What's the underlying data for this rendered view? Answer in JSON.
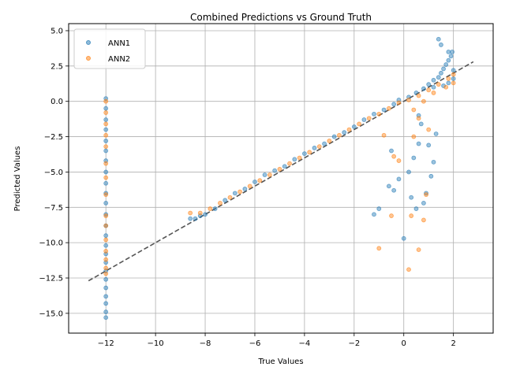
{
  "chart_data": {
    "type": "scatter",
    "title": "Combined Predictions vs Ground Truth",
    "xlabel": "True Values",
    "ylabel": "Predicted Values",
    "xlim": [
      -13.5,
      3.6
    ],
    "ylim": [
      -16.4,
      5.5
    ],
    "xticks": [
      -12,
      -10,
      -8,
      -6,
      -4,
      -2,
      0,
      2
    ],
    "yticks": [
      -15.0,
      -12.5,
      -10.0,
      -7.5,
      -5.0,
      -2.5,
      0.0,
      2.5,
      5.0
    ],
    "xtick_labels": [
      "−12",
      "−10",
      "−8",
      "−6",
      "−4",
      "−2",
      "0",
      "2"
    ],
    "ytick_labels": [
      "−15.0",
      "−12.5",
      "−10.0",
      "−7.5",
      "−5.0",
      "−2.5",
      "0.0",
      "2.5",
      "5.0"
    ],
    "grid": true,
    "legend_position": "top-left",
    "reference_line": {
      "style": "dashed",
      "color": "#555555",
      "x": [
        -12.7,
        2.8
      ],
      "y": [
        -12.7,
        2.8
      ]
    },
    "series": [
      {
        "name": "ANN1",
        "color": "#1f77b4",
        "points": [
          [
            -12,
            0.2
          ],
          [
            -12,
            -0.5
          ],
          [
            -12,
            -1.3
          ],
          [
            -12,
            -2.0
          ],
          [
            -12,
            -2.8
          ],
          [
            -12,
            -3.5
          ],
          [
            -12,
            -4.2
          ],
          [
            -12,
            -5.0
          ],
          [
            -12,
            -5.8
          ],
          [
            -12,
            -6.5
          ],
          [
            -12,
            -7.2
          ],
          [
            -12,
            -8.0
          ],
          [
            -12,
            -8.8
          ],
          [
            -12,
            -9.5
          ],
          [
            -12,
            -10.2
          ],
          [
            -12,
            -10.8
          ],
          [
            -12,
            -11.4
          ],
          [
            -12,
            -12.0
          ],
          [
            -12,
            -12.6
          ],
          [
            -12,
            -13.2
          ],
          [
            -12,
            -13.8
          ],
          [
            -12,
            -14.3
          ],
          [
            -12,
            -14.9
          ],
          [
            -12,
            -15.3
          ],
          [
            -8.6,
            -8.3
          ],
          [
            -8.4,
            -8.3
          ],
          [
            -8.2,
            -8.1
          ],
          [
            -8.0,
            -8.0
          ],
          [
            -7.6,
            -7.6
          ],
          [
            -7.2,
            -7.0
          ],
          [
            -6.8,
            -6.5
          ],
          [
            -6.4,
            -6.2
          ],
          [
            -6.0,
            -5.7
          ],
          [
            -5.6,
            -5.2
          ],
          [
            -5.2,
            -4.9
          ],
          [
            -4.8,
            -4.6
          ],
          [
            -4.4,
            -4.1
          ],
          [
            -4.0,
            -3.7
          ],
          [
            -3.6,
            -3.3
          ],
          [
            -3.2,
            -3.0
          ],
          [
            -2.8,
            -2.5
          ],
          [
            -2.4,
            -2.2
          ],
          [
            -2.0,
            -1.8
          ],
          [
            -1.6,
            -1.3
          ],
          [
            -1.2,
            -0.9
          ],
          [
            -0.8,
            -0.6
          ],
          [
            -0.4,
            -0.2
          ],
          [
            -0.2,
            0.1
          ],
          [
            0.2,
            0.3
          ],
          [
            0.5,
            0.6
          ],
          [
            0.8,
            0.9
          ],
          [
            1.0,
            1.2
          ],
          [
            1.2,
            1.5
          ],
          [
            1.4,
            1.7
          ],
          [
            1.5,
            2.0
          ],
          [
            1.6,
            2.3
          ],
          [
            1.7,
            2.6
          ],
          [
            1.8,
            2.9
          ],
          [
            1.9,
            3.2
          ],
          [
            1.95,
            3.5
          ],
          [
            2.0,
            2.2
          ],
          [
            2.0,
            1.6
          ],
          [
            1.8,
            1.3
          ],
          [
            1.4,
            4.4
          ],
          [
            1.5,
            4.0
          ],
          [
            1.8,
            3.5
          ],
          [
            1.2,
            1.0
          ],
          [
            1.6,
            1.1
          ],
          [
            0.0,
            -9.7
          ],
          [
            0.3,
            -6.8
          ],
          [
            0.5,
            -7.6
          ],
          [
            0.2,
            -5.0
          ],
          [
            0.4,
            -4.0
          ],
          [
            0.6,
            -3.0
          ],
          [
            0.8,
            -7.2
          ],
          [
            0.9,
            -6.5
          ],
          [
            1.1,
            -5.3
          ],
          [
            1.2,
            -4.3
          ],
          [
            1.0,
            -3.1
          ],
          [
            1.3,
            -2.3
          ],
          [
            -1.2,
            -8.0
          ],
          [
            -1.0,
            -7.6
          ],
          [
            -0.5,
            -3.5
          ],
          [
            -0.2,
            -5.5
          ],
          [
            0.7,
            -1.6
          ],
          [
            0.6,
            -1.0
          ],
          [
            -0.6,
            -6.0
          ],
          [
            -0.4,
            -6.3
          ]
        ]
      },
      {
        "name": "ANN2",
        "color": "#ff7f0e",
        "points": [
          [
            -12,
            0.0
          ],
          [
            -12,
            -0.8
          ],
          [
            -12,
            -1.6
          ],
          [
            -12,
            -2.4
          ],
          [
            -12,
            -3.2
          ],
          [
            -12,
            -4.4
          ],
          [
            -12,
            -5.4
          ],
          [
            -12,
            -6.6
          ],
          [
            -12,
            -8.1
          ],
          [
            -12,
            -8.8
          ],
          [
            -12,
            -9.8
          ],
          [
            -12,
            -10.6
          ],
          [
            -12,
            -11.2
          ],
          [
            -12,
            -11.8
          ],
          [
            -12,
            -12.2
          ],
          [
            -8.6,
            -7.9
          ],
          [
            -8.2,
            -7.9
          ],
          [
            -7.8,
            -7.6
          ],
          [
            -7.4,
            -7.2
          ],
          [
            -7.0,
            -6.8
          ],
          [
            -6.6,
            -6.4
          ],
          [
            -6.2,
            -6.0
          ],
          [
            -5.8,
            -5.6
          ],
          [
            -5.4,
            -5.2
          ],
          [
            -5.0,
            -4.8
          ],
          [
            -4.6,
            -4.4
          ],
          [
            -4.2,
            -4.0
          ],
          [
            -3.8,
            -3.6
          ],
          [
            -3.4,
            -3.2
          ],
          [
            -3.0,
            -2.8
          ],
          [
            -2.6,
            -2.4
          ],
          [
            -2.2,
            -2.0
          ],
          [
            -1.8,
            -1.6
          ],
          [
            -1.4,
            -1.2
          ],
          [
            -1.0,
            -0.9
          ],
          [
            -0.6,
            -0.5
          ],
          [
            -0.2,
            -0.1
          ],
          [
            0.2,
            0.1
          ],
          [
            0.6,
            0.4
          ],
          [
            1.0,
            0.8
          ],
          [
            1.4,
            1.2
          ],
          [
            1.8,
            1.6
          ],
          [
            2.0,
            1.9
          ],
          [
            2.0,
            1.3
          ],
          [
            1.7,
            1.0
          ],
          [
            1.2,
            0.6
          ],
          [
            0.8,
            0.0
          ],
          [
            0.4,
            -0.6
          ],
          [
            -1.0,
            -10.4
          ],
          [
            0.2,
            -11.9
          ],
          [
            0.6,
            -10.5
          ],
          [
            -0.5,
            -8.1
          ],
          [
            0.3,
            -8.1
          ],
          [
            0.8,
            -8.4
          ],
          [
            0.9,
            -6.6
          ],
          [
            -0.4,
            -3.9
          ],
          [
            -0.2,
            -4.2
          ],
          [
            0.4,
            -2.5
          ],
          [
            0.6,
            -1.2
          ],
          [
            1.0,
            -2.0
          ],
          [
            -0.8,
            -2.4
          ]
        ]
      }
    ]
  }
}
